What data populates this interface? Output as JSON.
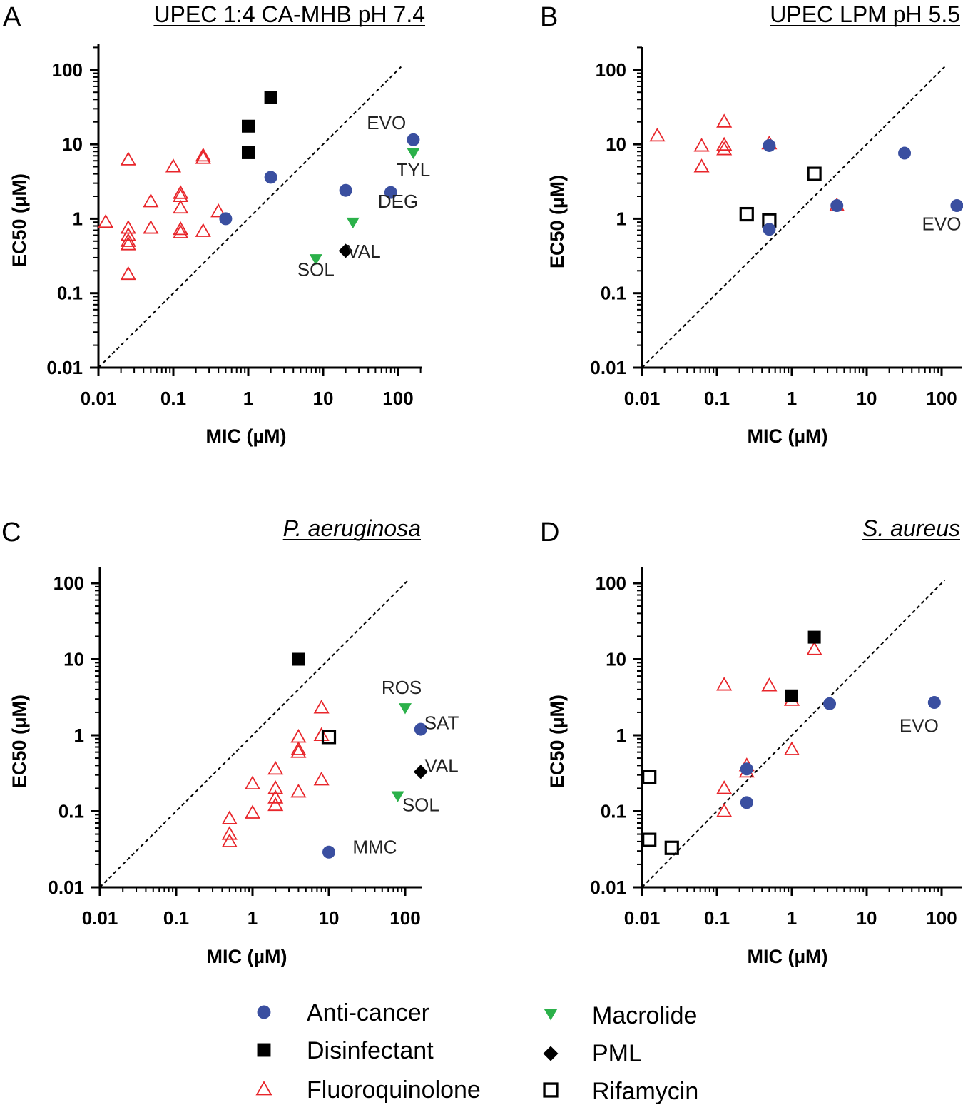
{
  "colors": {
    "anticancer": "#3a4fa0",
    "disinfectant": "#000000",
    "fluoroquinolone": "#e8262b",
    "macrolide": "#2bb14a",
    "pml": "#000000",
    "rifamycin": "#000000"
  },
  "legend": {
    "items": [
      {
        "key": "anticancer",
        "label": "Anti-cancer",
        "marker": "circle"
      },
      {
        "key": "disinfectant",
        "label": "Disinfectant",
        "marker": "square"
      },
      {
        "key": "fluoroquinolone",
        "label": "Fluoroquinolone",
        "marker": "triangle-open"
      },
      {
        "key": "macrolide",
        "label": "Macrolide",
        "marker": "triangle-down"
      },
      {
        "key": "pml",
        "label": "PML",
        "marker": "diamond"
      },
      {
        "key": "rifamycin",
        "label": "Rifamycin",
        "marker": "square-open"
      }
    ]
  },
  "chart_data": [
    {
      "panel": "A",
      "type": "scatter",
      "title": "UPEC 1:4 CA-MHB pH 7.4",
      "title_italic": false,
      "xlabel": "MIC (µM)",
      "ylabel": "EC50 (µM)",
      "xscale": "log",
      "yscale": "log",
      "xlim": [
        0.01,
        200
      ],
      "ylim": [
        0.01,
        200
      ],
      "xticks": [
        "0.01",
        "0.1",
        "1",
        "10",
        "100"
      ],
      "yticks": [
        "0.01",
        "0.1",
        "1",
        "10",
        "100"
      ],
      "identity_line": true,
      "series": [
        {
          "key": "fluoroquinolone",
          "points": [
            [
              0.0125,
              0.9
            ],
            [
              0.025,
              6.2
            ],
            [
              0.025,
              0.75
            ],
            [
              0.025,
              0.6
            ],
            [
              0.025,
              0.5
            ],
            [
              0.025,
              0.45
            ],
            [
              0.025,
              0.18
            ],
            [
              0.05,
              1.7
            ],
            [
              0.05,
              0.75
            ],
            [
              0.1,
              5.0
            ],
            [
              0.125,
              2.2
            ],
            [
              0.125,
              2.0
            ],
            [
              0.125,
              1.4
            ],
            [
              0.125,
              0.72
            ],
            [
              0.125,
              0.65
            ],
            [
              0.25,
              7.0
            ],
            [
              0.25,
              6.5
            ],
            [
              0.25,
              0.68
            ],
            [
              0.4,
              1.25
            ]
          ]
        },
        {
          "key": "disinfectant",
          "points": [
            [
              1.0,
              7.7
            ],
            [
              1.0,
              17.5
            ],
            [
              2.0,
              43.0
            ]
          ]
        },
        {
          "key": "anticancer",
          "points": [
            [
              0.5,
              1.0
            ],
            [
              2.0,
              3.6
            ],
            [
              20,
              2.4
            ],
            [
              80,
              2.25
            ],
            [
              160,
              11.5
            ]
          ]
        },
        {
          "key": "macrolide",
          "points": [
            [
              160,
              7.7
            ],
            [
              25,
              0.9
            ],
            [
              8,
              0.29
            ]
          ]
        },
        {
          "key": "pml",
          "points": [
            [
              20,
              0.37
            ]
          ]
        }
      ],
      "annotations": [
        {
          "text": "EVO",
          "x": 70,
          "y": 16
        },
        {
          "text": "TYL",
          "x": 160,
          "y": 3.7
        },
        {
          "text": "DEG",
          "x": 100,
          "y": 1.4
        },
        {
          "text": "VAL",
          "x": 35,
          "y": 0.3
        },
        {
          "text": "SOL",
          "x": 8,
          "y": 0.17
        }
      ]
    },
    {
      "panel": "B",
      "type": "scatter",
      "title": "UPEC LPM pH 5.5",
      "title_italic": false,
      "xlabel": "MIC (µM)",
      "ylabel": "EC50 (µM)",
      "xscale": "log",
      "yscale": "log",
      "xlim": [
        0.01,
        200
      ],
      "ylim": [
        0.01,
        200
      ],
      "xticks": [
        "0.01",
        "0.1",
        "1",
        "10",
        "100"
      ],
      "yticks": [
        "0.01",
        "0.1",
        "1",
        "10",
        "100"
      ],
      "identity_line": true,
      "series": [
        {
          "key": "fluoroquinolone",
          "points": [
            [
              0.016,
              13.0
            ],
            [
              0.0625,
              9.5
            ],
            [
              0.0625,
              5.0
            ],
            [
              0.125,
              20.0
            ],
            [
              0.125,
              9.8
            ],
            [
              0.125,
              8.5
            ],
            [
              0.5,
              10.2
            ],
            [
              4,
              1.5
            ]
          ]
        },
        {
          "key": "anticancer",
          "points": [
            [
              0.5,
              9.6
            ],
            [
              0.5,
              0.72
            ],
            [
              4,
              1.5
            ],
            [
              32,
              7.6
            ],
            [
              160,
              1.5
            ]
          ]
        },
        {
          "key": "rifamycin",
          "points": [
            [
              0.25,
              1.15
            ],
            [
              0.5,
              0.95
            ],
            [
              2,
              4.0
            ]
          ]
        }
      ],
      "annotations": [
        {
          "text": "EVO",
          "x": 100,
          "y": 0.7
        }
      ]
    },
    {
      "panel": "C",
      "type": "scatter",
      "title": "P. aeruginosa",
      "title_italic": true,
      "xlabel": "MIC (µM)",
      "ylabel": "EC50 (µM)",
      "xscale": "log",
      "yscale": "log",
      "xlim": [
        0.01,
        200
      ],
      "ylim": [
        0.01,
        200
      ],
      "xticks": [
        "0.01",
        "0.1",
        "1",
        "10",
        "100"
      ],
      "yticks": [
        "0.01",
        "0.1",
        "1",
        "10",
        "100"
      ],
      "identity_line": true,
      "series": [
        {
          "key": "fluoroquinolone",
          "points": [
            [
              0.5,
              0.08
            ],
            [
              0.5,
              0.05
            ],
            [
              0.5,
              0.04
            ],
            [
              1,
              0.23
            ],
            [
              1,
              0.095
            ],
            [
              2,
              0.36
            ],
            [
              2,
              0.2
            ],
            [
              2,
              0.15
            ],
            [
              2,
              0.12
            ],
            [
              4,
              0.95
            ],
            [
              4,
              0.65
            ],
            [
              4,
              0.6
            ],
            [
              4,
              0.18
            ],
            [
              8,
              2.3
            ],
            [
              8,
              1.0
            ],
            [
              8,
              0.26
            ]
          ]
        },
        {
          "key": "disinfectant",
          "points": [
            [
              4,
              10.0
            ]
          ]
        },
        {
          "key": "rifamycin",
          "points": [
            [
              10,
              0.95
            ]
          ]
        },
        {
          "key": "macrolide",
          "points": [
            [
              100,
              2.3
            ],
            [
              80,
              0.16
            ]
          ]
        },
        {
          "key": "anticancer",
          "points": [
            [
              160,
              1.2
            ],
            [
              10,
              0.029
            ]
          ]
        },
        {
          "key": "pml",
          "points": [
            [
              160,
              0.33
            ]
          ]
        }
      ],
      "annotations": [
        {
          "text": "ROS",
          "x": 90,
          "y": 3.5
        },
        {
          "text": "SAT",
          "x": 300,
          "y": 1.2
        },
        {
          "text": "VAL",
          "x": 300,
          "y": 0.33
        },
        {
          "text": "SOL",
          "x": 160,
          "y": 0.1
        },
        {
          "text": "MMC",
          "x": 40,
          "y": 0.028
        }
      ]
    },
    {
      "panel": "D",
      "type": "scatter",
      "title": "S. aureus",
      "title_italic": true,
      "xlabel": "MIC (µM)",
      "ylabel": "EC50 (µM)",
      "xscale": "log",
      "yscale": "log",
      "xlim": [
        0.01,
        200
      ],
      "ylim": [
        0.01,
        200
      ],
      "xticks": [
        "0.01",
        "0.1",
        "1",
        "10",
        "100"
      ],
      "yticks": [
        "0.01",
        "0.1",
        "1",
        "10",
        "100"
      ],
      "identity_line": true,
      "series": [
        {
          "key": "fluoroquinolone",
          "points": [
            [
              0.125,
              4.6
            ],
            [
              0.5,
              4.5
            ],
            [
              2,
              13.5
            ],
            [
              1,
              2.9
            ],
            [
              1,
              0.65
            ],
            [
              0.25,
              0.4
            ],
            [
              0.25,
              0.33
            ],
            [
              0.125,
              0.2
            ],
            [
              0.125,
              0.1
            ]
          ]
        },
        {
          "key": "disinfectant",
          "points": [
            [
              1,
              3.3
            ],
            [
              2,
              19.5
            ]
          ]
        },
        {
          "key": "anticancer",
          "points": [
            [
              0.25,
              0.36
            ],
            [
              0.25,
              0.13
            ],
            [
              3.2,
              2.6
            ],
            [
              80,
              2.7
            ]
          ]
        },
        {
          "key": "rifamycin",
          "points": [
            [
              0.0125,
              0.28
            ],
            [
              0.0125,
              0.042
            ],
            [
              0.025,
              0.033
            ]
          ]
        }
      ],
      "annotations": [
        {
          "text": "EVO",
          "x": 50,
          "y": 1.1
        }
      ]
    }
  ]
}
